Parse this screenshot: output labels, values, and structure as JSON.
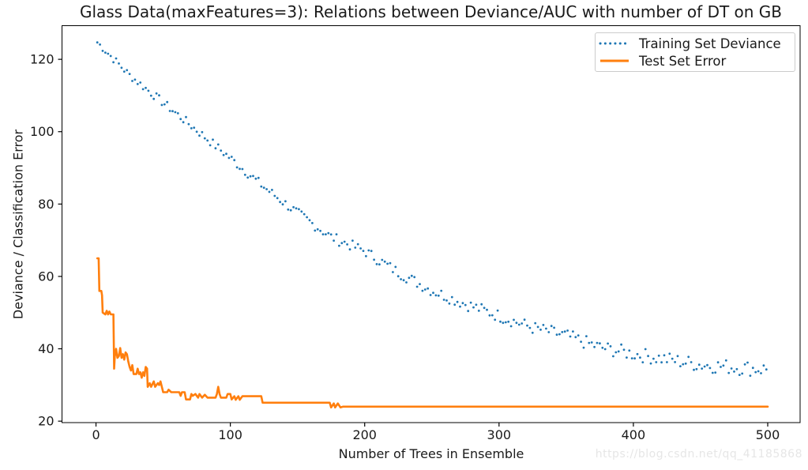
{
  "watermark": {
    "text": "https://blog.csdn.net/qq_41185868",
    "color": "#e6e6e6"
  },
  "chart_data": {
    "type": "line",
    "title": "Glass Data(maxFeatures=3): Relations between Deviance/AUC with number of DT on GB",
    "xlabel": "Number of Trees in Ensemble",
    "ylabel": "Deviance / Classification Error",
    "xlim": [
      -25.3,
      524.1
    ],
    "ylim": [
      19.6,
      129.3
    ],
    "x_ticks": [
      0,
      100,
      200,
      300,
      400,
      500
    ],
    "y_ticks": [
      20,
      40,
      60,
      80,
      100,
      120
    ],
    "grid": false,
    "legend": {
      "position": "upper right",
      "entries": [
        {
          "label": "Training Set Deviance",
          "color": "#1f77b4",
          "style": "dotted"
        },
        {
          "label": "Test Set Error",
          "color": "#ff7f0e",
          "style": "solid"
        }
      ]
    },
    "series": [
      {
        "name": "Training Set Deviance",
        "color": "#1f77b4",
        "style": "dotted",
        "x_start": 1,
        "x_end": 499,
        "x_step": 2,
        "trend_x": [
          1,
          25,
          50,
          75,
          100,
          125,
          150,
          175,
          200,
          225,
          250,
          275,
          300,
          325,
          350,
          375,
          400,
          425,
          450,
          475,
          500
        ],
        "trend_y": [
          124.7,
          115.6,
          108.0,
          100.4,
          92.7,
          84.7,
          77.5,
          70.9,
          67.0,
          61.1,
          56.1,
          52.4,
          49.1,
          45.8,
          43.6,
          40.4,
          38.6,
          37.1,
          35.6,
          34.9,
          34.3
        ],
        "noise": {
          "seed": 7,
          "amp_start": 1.1,
          "amp_end": 2.2
        }
      },
      {
        "name": "Test Set Error",
        "color": "#ff7f0e",
        "style": "solid",
        "points": [
          [
            1,
            65
          ],
          [
            2,
            65
          ],
          [
            2.5,
            56
          ],
          [
            4,
            56
          ],
          [
            4.5,
            54.8
          ],
          [
            5,
            50
          ],
          [
            7,
            49.5
          ],
          [
            8,
            50.5
          ],
          [
            9,
            49.5
          ],
          [
            10,
            50.3
          ],
          [
            11,
            49.5
          ],
          [
            13,
            49.5
          ],
          [
            13.5,
            34.5
          ],
          [
            14,
            37.8
          ],
          [
            15,
            40
          ],
          [
            16,
            37.5
          ],
          [
            17,
            38
          ],
          [
            18,
            40.2
          ],
          [
            19,
            37.5
          ],
          [
            20,
            38.5
          ],
          [
            21,
            37
          ],
          [
            22,
            39
          ],
          [
            23,
            38.5
          ],
          [
            24,
            36.5
          ],
          [
            25,
            35
          ],
          [
            26,
            34
          ],
          [
            27,
            35.5
          ],
          [
            28,
            33
          ],
          [
            30,
            33
          ],
          [
            31,
            34.5
          ],
          [
            32,
            33
          ],
          [
            33,
            33.5
          ],
          [
            34,
            32
          ],
          [
            35,
            33.5
          ],
          [
            36,
            32.5
          ],
          [
            37,
            35
          ],
          [
            38,
            34.5
          ],
          [
            38.5,
            29.5
          ],
          [
            40,
            30.5
          ],
          [
            41,
            29.5
          ],
          [
            43,
            31
          ],
          [
            44,
            29.5
          ],
          [
            46,
            30.5
          ],
          [
            47,
            30
          ],
          [
            48,
            31
          ],
          [
            49,
            29.5
          ],
          [
            50,
            28
          ],
          [
            53,
            28
          ],
          [
            54,
            28.7
          ],
          [
            56,
            28
          ],
          [
            62,
            28
          ],
          [
            63,
            27
          ],
          [
            64,
            28
          ],
          [
            66,
            28
          ],
          [
            67,
            26
          ],
          [
            70,
            26
          ],
          [
            71,
            27.5
          ],
          [
            72,
            27
          ],
          [
            74,
            27.5
          ],
          [
            76,
            26.5
          ],
          [
            77,
            27.5
          ],
          [
            79,
            26.5
          ],
          [
            81,
            27.3
          ],
          [
            83,
            26.5
          ],
          [
            89,
            26.5
          ],
          [
            90,
            27.5
          ],
          [
            91,
            29.5
          ],
          [
            92,
            27.5
          ],
          [
            93,
            26.5
          ],
          [
            97,
            26.5
          ],
          [
            98,
            27.5
          ],
          [
            100,
            27.5
          ],
          [
            101,
            26
          ],
          [
            103,
            26.9
          ],
          [
            104,
            25.9
          ],
          [
            106,
            26.9
          ],
          [
            107,
            25.9
          ],
          [
            109,
            26.9
          ],
          [
            123,
            26.9
          ],
          [
            124,
            25.1
          ],
          [
            174,
            25.1
          ],
          [
            175,
            23.8
          ],
          [
            177,
            24.9
          ],
          [
            178,
            23.8
          ],
          [
            180,
            24.9
          ],
          [
            182,
            23.8
          ],
          [
            184,
            24
          ],
          [
            500,
            24
          ]
        ]
      }
    ]
  }
}
